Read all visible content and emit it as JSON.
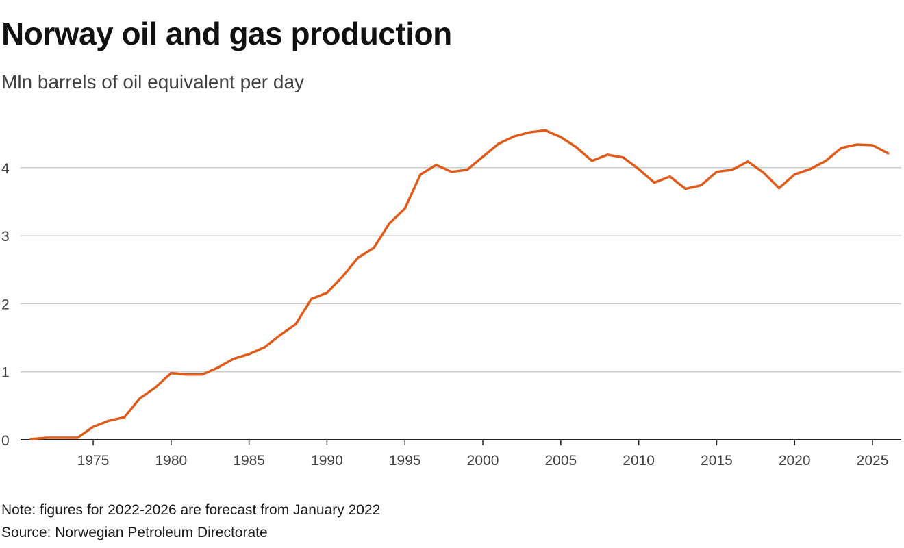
{
  "title": "Norway oil and gas production",
  "subtitle": "Mln barrels of oil equivalent per day",
  "note": "Note: figures for 2022-2026 are forecast from January 2022",
  "source": "Source: Norwegian Petroleum Directorate",
  "colors": {
    "line": "#e05a1a",
    "grid": "#cccccc",
    "axis": "#222222"
  },
  "chart_data": {
    "type": "line",
    "title": "Norway oil and gas production",
    "subtitle": "Mln barrels of oil equivalent per day",
    "xlabel": "",
    "ylabel": "",
    "xlim": [
      1971,
      2026
    ],
    "ylim": [
      0,
      4.6
    ],
    "grid": true,
    "x_ticks": [
      1975,
      1980,
      1985,
      1990,
      1995,
      2000,
      2005,
      2010,
      2015,
      2020,
      2025
    ],
    "y_ticks": [
      0,
      1,
      2,
      3,
      4
    ],
    "x": [
      1971,
      1972,
      1973,
      1974,
      1975,
      1976,
      1977,
      1978,
      1979,
      1980,
      1981,
      1982,
      1983,
      1984,
      1985,
      1986,
      1987,
      1988,
      1989,
      1990,
      1991,
      1992,
      1993,
      1994,
      1995,
      1996,
      1997,
      1998,
      1999,
      2000,
      2001,
      2002,
      2003,
      2004,
      2005,
      2006,
      2007,
      2008,
      2009,
      2010,
      2011,
      2012,
      2013,
      2014,
      2015,
      2016,
      2017,
      2018,
      2019,
      2020,
      2021,
      2022,
      2023,
      2024,
      2025,
      2026
    ],
    "series": [
      {
        "values": [
          0.01,
          0.03,
          0.03,
          0.03,
          0.19,
          0.28,
          0.33,
          0.61,
          0.77,
          0.98,
          0.96,
          0.96,
          1.06,
          1.19,
          1.26,
          1.36,
          1.54,
          1.7,
          2.07,
          2.16,
          2.4,
          2.68,
          2.82,
          3.18,
          3.4,
          3.9,
          4.04,
          3.94,
          3.97,
          4.16,
          4.35,
          4.46,
          4.52,
          4.55,
          4.45,
          4.3,
          4.1,
          4.19,
          4.15,
          3.98,
          3.78,
          3.87,
          3.69,
          3.74,
          3.94,
          3.97,
          4.09,
          3.93,
          3.7,
          3.9,
          3.98,
          4.1,
          4.29,
          4.34,
          4.33,
          4.21
        ]
      }
    ]
  }
}
